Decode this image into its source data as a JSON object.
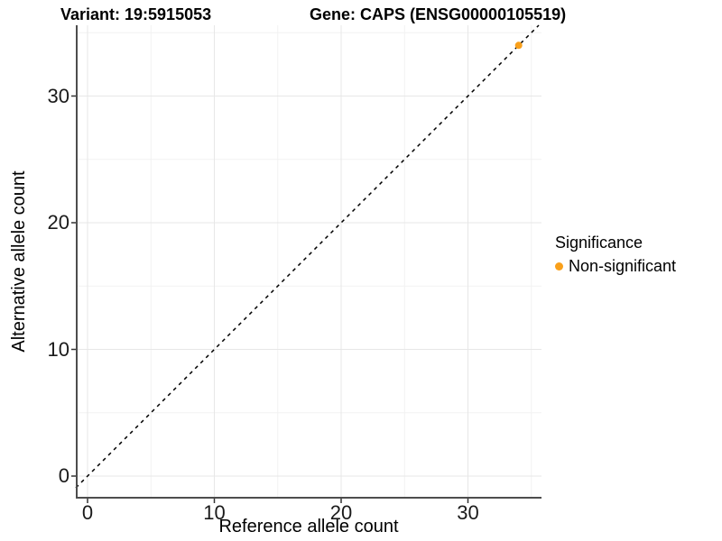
{
  "chart_data": {
    "type": "scatter",
    "titles": {
      "variant": "Variant: 19:5915053",
      "gene": "Gene: CAPS (ENSG00000105519)"
    },
    "xlabel": "Reference allele count",
    "ylabel": "Alternative allele count",
    "x_ticks": [
      0,
      10,
      20,
      30
    ],
    "y_ticks": [
      0,
      10,
      20,
      30
    ],
    "minor_ticks": [
      5,
      15,
      25,
      35
    ],
    "xlim": [
      -0.9,
      35.8
    ],
    "ylim": [
      -1.8,
      35.6
    ],
    "grid": "major and minor gridlines, light gray, white panel background",
    "points": [
      {
        "x": 34,
        "y": 34,
        "significance": "Non-significant"
      }
    ],
    "reference_line": {
      "slope": 1,
      "intercept": 0,
      "style": "dashed"
    },
    "legend": {
      "title": "Significance",
      "position": "right",
      "items": [
        {
          "label": "Non-significant",
          "color": "#F9A01B"
        }
      ]
    },
    "colors": {
      "point": "#F9A01B",
      "grid_major": "#E7E7E7",
      "grid_minor": "#F2F2F2",
      "axis_line": "#4D4D4D",
      "tick_mark": "#333333",
      "reference_line": "#000000"
    }
  }
}
